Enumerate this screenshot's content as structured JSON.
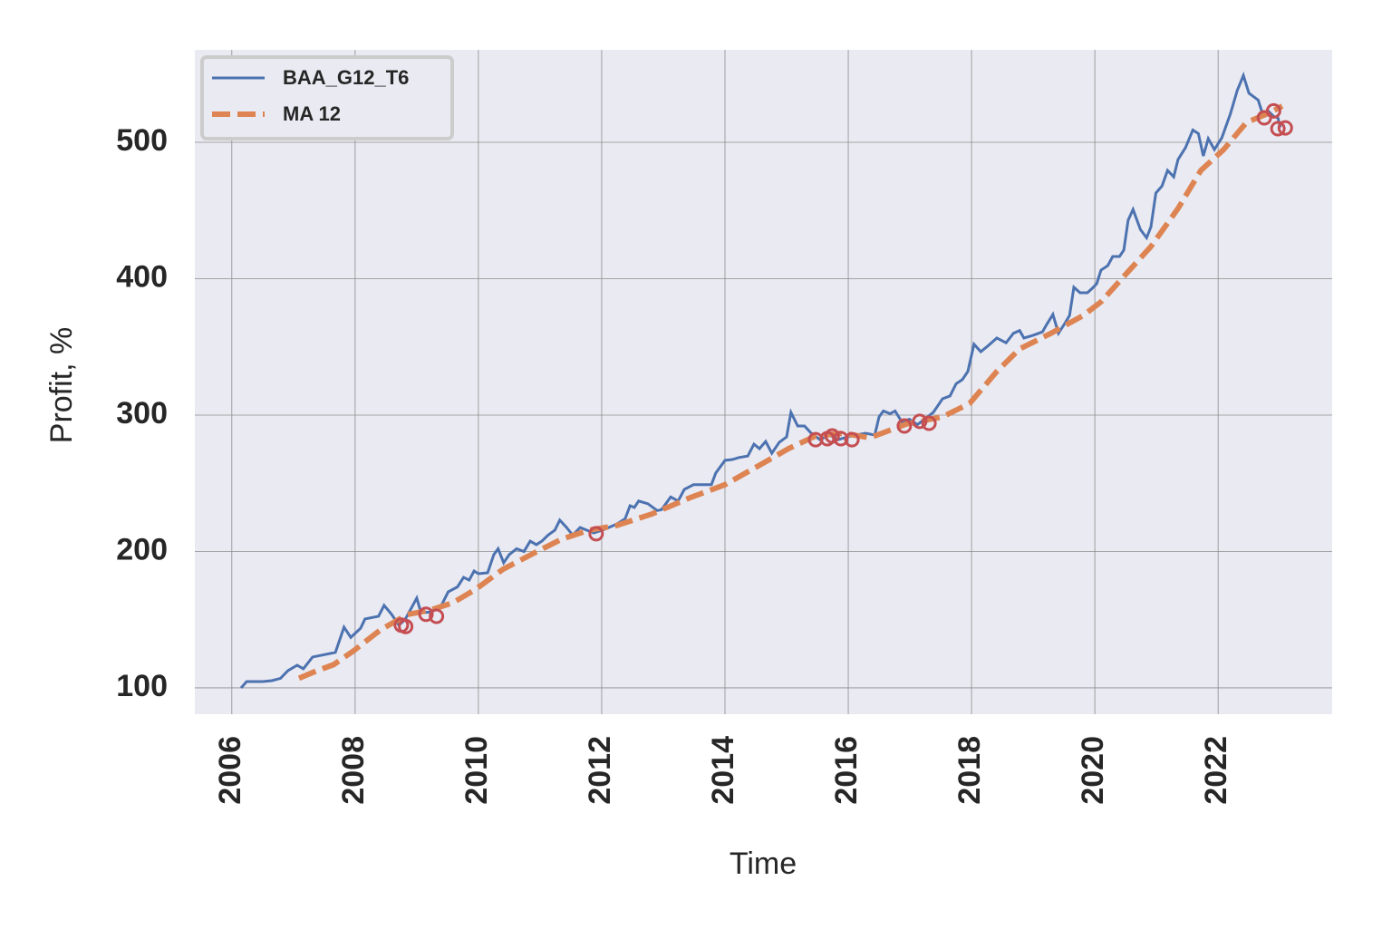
{
  "chart_data": {
    "type": "line",
    "xlabel": "Time",
    "ylabel": "Profit, %",
    "xlim": [
      2005.4,
      2023.85
    ],
    "ylim": [
      80.7,
      567.8
    ],
    "xticks": [
      2006,
      2008,
      2010,
      2012,
      2014,
      2016,
      2018,
      2020,
      2022
    ],
    "yticks": [
      100,
      200,
      300,
      400,
      500
    ],
    "grid": true,
    "legend": "upper left",
    "series": [
      {
        "name": "BAA_G12_T6",
        "color": "#4c72b0",
        "style": "solid",
        "x": [
          2006.15,
          2006.24,
          2006.5,
          2006.65,
          2006.79,
          2006.91,
          2007.06,
          2007.16,
          2007.31,
          2007.68,
          2007.82,
          2007.93,
          2008.09,
          2008.16,
          2008.38,
          2008.47,
          2008.59,
          2008.71,
          2008.81,
          2009.0,
          2009.07,
          2009.22,
          2009.4,
          2009.51,
          2009.66,
          2009.76,
          2009.85,
          2009.93,
          2010.0,
          2010.15,
          2010.25,
          2010.32,
          2010.41,
          2010.5,
          2010.62,
          2010.74,
          2010.84,
          2010.94,
          2011.03,
          2011.13,
          2011.24,
          2011.32,
          2011.43,
          2011.53,
          2011.65,
          2011.87,
          2012.01,
          2012.24,
          2012.38,
          2012.46,
          2012.53,
          2012.6,
          2012.75,
          2012.9,
          2012.97,
          2013.12,
          2013.24,
          2013.34,
          2013.49,
          2013.63,
          2013.78,
          2013.85,
          2014.0,
          2014.12,
          2014.22,
          2014.37,
          2014.47,
          2014.56,
          2014.66,
          2014.76,
          2014.88,
          2015.0,
          2015.07,
          2015.18,
          2015.29,
          2015.4,
          2015.54,
          2015.69,
          2015.84,
          2015.99,
          2016.13,
          2016.28,
          2016.43,
          2016.5,
          2016.57,
          2016.68,
          2016.76,
          2016.87,
          2016.99,
          2017.12,
          2017.24,
          2017.38,
          2017.53,
          2017.65,
          2017.75,
          2017.85,
          2017.94,
          2018.04,
          2018.15,
          2018.26,
          2018.41,
          2018.56,
          2018.68,
          2018.78,
          2018.85,
          2019.0,
          2019.15,
          2019.22,
          2019.32,
          2019.41,
          2019.51,
          2019.59,
          2019.66,
          2019.76,
          2019.88,
          2019.96,
          2020.03,
          2020.1,
          2020.21,
          2020.29,
          2020.4,
          2020.47,
          2020.54,
          2020.62,
          2020.74,
          2020.84,
          2020.91,
          2020.99,
          2021.09,
          2021.18,
          2021.28,
          2021.35,
          2021.47,
          2021.59,
          2021.68,
          2021.76,
          2021.84,
          2021.94,
          2022.06,
          2022.2,
          2022.31,
          2022.41,
          2022.5,
          2022.65,
          2022.72,
          2022.82,
          2022.9,
          2022.97,
          2023.01
        ],
        "values": [
          100,
          104.6,
          104.6,
          105.3,
          107,
          112.6,
          116.6,
          114,
          122.6,
          126,
          144.5,
          137,
          143.8,
          150.5,
          152.5,
          160.5,
          154,
          146,
          150,
          165.8,
          155,
          155.6,
          160.5,
          170.4,
          174,
          181,
          179,
          185.7,
          183.7,
          184.4,
          197.7,
          202,
          191.7,
          197.7,
          202,
          200,
          207.6,
          205,
          207.6,
          212,
          215.6,
          223,
          217.6,
          212,
          217.6,
          213.6,
          215.6,
          220,
          224,
          233.6,
          232.3,
          237,
          235,
          230,
          230.6,
          240,
          237,
          245.5,
          249,
          249,
          249,
          257.5,
          266.8,
          267.4,
          268.8,
          270,
          278.7,
          275.4,
          280.7,
          272,
          280,
          284,
          302,
          292,
          292,
          286.7,
          282,
          285.4,
          282,
          284,
          285.4,
          286.7,
          285.4,
          298.7,
          303,
          301,
          303,
          295,
          297,
          293,
          297,
          302,
          312,
          314,
          323,
          326,
          332,
          352,
          346.5,
          350.5,
          356.5,
          353,
          360,
          362,
          356.5,
          358.5,
          361,
          366.5,
          373.8,
          360,
          367,
          373,
          393.7,
          389.7,
          389.7,
          393,
          396.3,
          406.3,
          409.6,
          416.3,
          416.3,
          421,
          442.8,
          450.8,
          436,
          430,
          438,
          462.8,
          468,
          479.4,
          474.7,
          487.4,
          496,
          509,
          506.4,
          490,
          502.7,
          494.7,
          503.3,
          521,
          538,
          549,
          536,
          531,
          521,
          522.6,
          519,
          518,
          511
        ]
      },
      {
        "name": "MA 12",
        "color": "#dd8452",
        "style": "dashed",
        "x": [
          2007.09,
          2007.38,
          2007.65,
          2007.97,
          2008.41,
          2008.85,
          2009.22,
          2009.59,
          2009.96,
          2010.4,
          2010.91,
          2011.35,
          2011.79,
          2012.24,
          2012.82,
          2013.41,
          2014.0,
          2014.59,
          2015.03,
          2015.47,
          2015.91,
          2016.35,
          2016.94,
          2017.53,
          2017.97,
          2018.41,
          2018.78,
          2019.29,
          2019.81,
          2020.1,
          2020.47,
          2020.91,
          2021.35,
          2021.72,
          2022.09,
          2022.46,
          2022.82,
          2023.04
        ],
        "values": [
          107,
          112.6,
          117,
          127,
          142.5,
          153.8,
          157,
          162.5,
          172.4,
          187,
          199,
          209,
          215.6,
          219,
          227.6,
          239,
          249,
          264,
          275.4,
          284.7,
          286.7,
          283.4,
          293.4,
          298.7,
          308.6,
          332,
          348.5,
          360,
          373,
          383,
          401.7,
          423.6,
          451.5,
          479.4,
          494.7,
          514.6,
          521.3,
          526.6
        ]
      }
    ],
    "markers": {
      "color": "#c44e52",
      "x": [
        2008.75,
        2008.82,
        2009.15,
        2009.32,
        2011.91,
        2015.47,
        2015.66,
        2015.74,
        2015.88,
        2016.06,
        2016.91,
        2017.16,
        2017.31,
        2022.75,
        2022.9,
        2022.97,
        2023.09
      ],
      "values": [
        146,
        145,
        154,
        152.5,
        213,
        282,
        282.7,
        284.7,
        282.7,
        282,
        292,
        295.4,
        294,
        518,
        523,
        510,
        510.6
      ]
    }
  }
}
